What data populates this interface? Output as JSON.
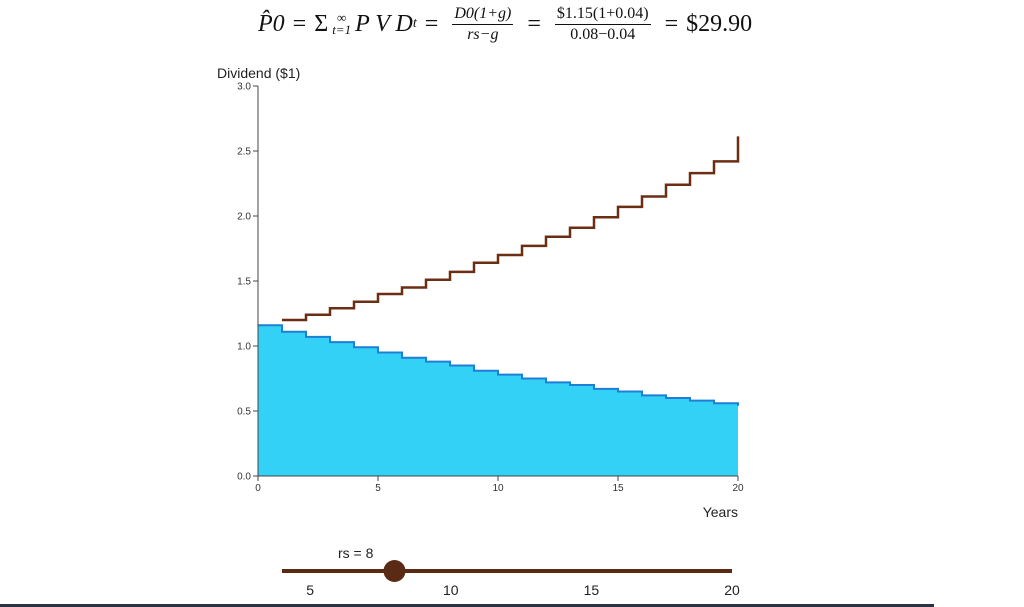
{
  "formula": {
    "p0": "P̂0",
    "eq": "=",
    "sigma": "Σ",
    "sum_top": "∞",
    "sum_bottom": "t=1",
    "pvd": "P V D",
    "pvd_sub": "t",
    "frac1_num": "D0(1+g)",
    "frac1_den": "rs−g",
    "frac2_num": "$1.15(1+0.04)",
    "frac2_den": "0.08−0.04",
    "result": "$29.90"
  },
  "chart_data": {
    "type": "line",
    "ylabel": "Dividend ($1)",
    "xlabel": "Years",
    "xlim": [
      0,
      20
    ],
    "ylim": [
      0,
      3
    ],
    "x_ticks": [
      0,
      5,
      10,
      15,
      20
    ],
    "y_ticks": [
      0,
      0.5,
      1,
      1.5,
      2,
      2.5,
      3
    ],
    "x_tick_labels": [
      "0",
      "5",
      "10",
      "15",
      "20"
    ],
    "y_tick_labels": [
      "0.0",
      "0.5",
      "1.0",
      "1.5",
      "2.0",
      "2.5",
      "3.0"
    ],
    "series": [
      {
        "style": "step",
        "color": "#6b2e12",
        "x": [
          1,
          2,
          3,
          4,
          5,
          6,
          7,
          8,
          9,
          10,
          11,
          12,
          13,
          14,
          15,
          16,
          17,
          18,
          19,
          20
        ],
        "values": [
          1.2,
          1.24,
          1.29,
          1.34,
          1.4,
          1.45,
          1.51,
          1.57,
          1.64,
          1.7,
          1.77,
          1.84,
          1.91,
          1.99,
          2.07,
          2.15,
          2.24,
          2.33,
          2.42,
          2.52
        ]
      },
      {
        "style": "step-area",
        "color": "#1f7fd6",
        "fill": "#33d1f5",
        "x": [
          0,
          1,
          2,
          3,
          4,
          5,
          6,
          7,
          8,
          9,
          10,
          11,
          12,
          13,
          14,
          15,
          16,
          17,
          18,
          19,
          20
        ],
        "values": [
          1.16,
          1.11,
          1.07,
          1.03,
          0.99,
          0.95,
          0.91,
          0.88,
          0.85,
          0.81,
          0.78,
          0.75,
          0.72,
          0.7,
          0.67,
          0.65,
          0.62,
          0.6,
          0.58,
          0.56,
          0.54
        ]
      }
    ]
  },
  "slider": {
    "label": "rs = 8",
    "min": 4,
    "max": 20,
    "value": 8,
    "ticks": [
      5,
      10,
      15,
      20
    ],
    "tick_labels": [
      "5",
      "10",
      "15",
      "20"
    ],
    "track_color": "#5a2a14",
    "handle_color": "#5a2a14"
  }
}
